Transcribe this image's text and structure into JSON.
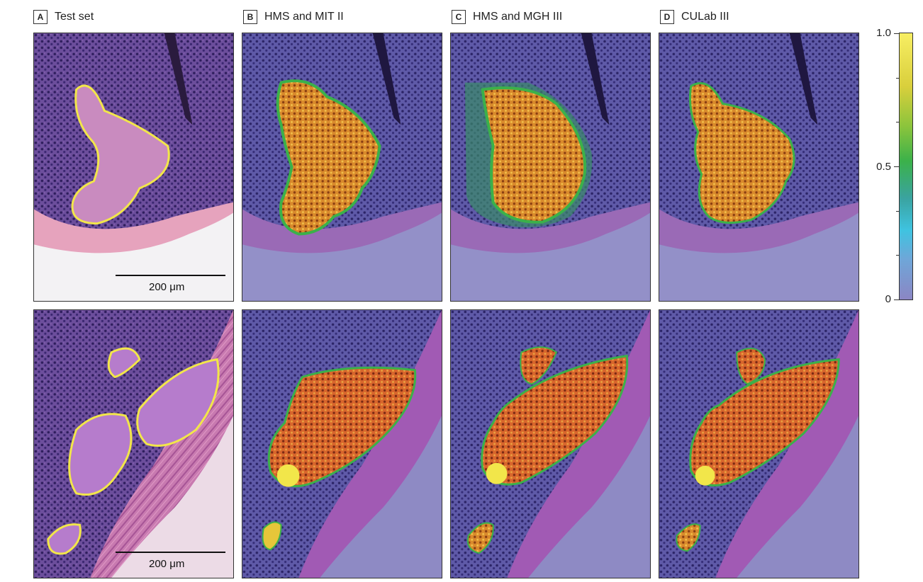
{
  "columns": [
    {
      "letter": "A",
      "title": "Test set"
    },
    {
      "letter": "B",
      "title": "HMS and MIT II"
    },
    {
      "letter": "C",
      "title": "HMS and MGH III"
    },
    {
      "letter": "D",
      "title": "CULab III"
    }
  ],
  "scale_bar": {
    "label": "200 μm"
  },
  "colorbar": {
    "tick_labels": [
      "1.0",
      "0.5",
      "0"
    ],
    "range": [
      0,
      1
    ],
    "colors": [
      "#8b86c4",
      "#3fc3e0",
      "#3bb14a",
      "#f7ee63"
    ]
  },
  "colors": {
    "tissue_purple": "#5a3f8c",
    "stroma_pink": "#d87fb0",
    "annotation_yellow": "#f2e64a",
    "heat_orange": "#d9762a",
    "background_lavender": "#8e8ac4"
  }
}
